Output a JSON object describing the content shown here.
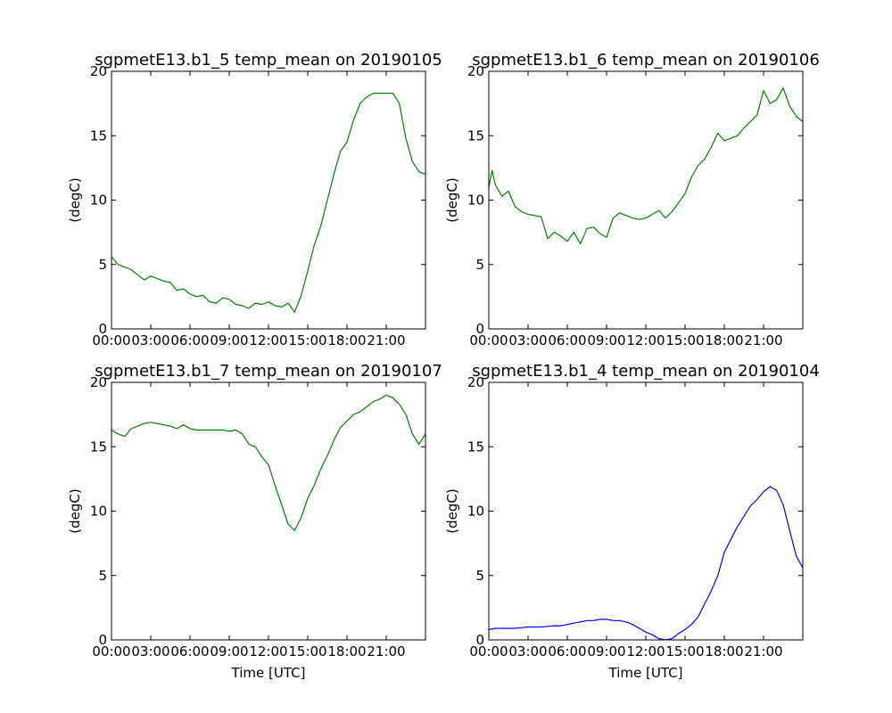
{
  "chart_data": [
    {
      "type": "line",
      "title": "sgpmetE13.b1_5 temp_mean on 20190105",
      "xlabel": "",
      "ylabel": "(degC)",
      "xlim": [
        0,
        24
      ],
      "ylim": [
        0,
        20
      ],
      "x_ticks": [
        0,
        3,
        6,
        9,
        12,
        15,
        18,
        21
      ],
      "x_tick_labels": [
        "00:00",
        "03:00",
        "06:00",
        "09:00",
        "12:00",
        "15:00",
        "18:00",
        "21:00"
      ],
      "y_ticks": [
        0,
        5,
        10,
        15,
        20
      ],
      "y_tick_labels": [
        "0",
        "5",
        "10",
        "15",
        "20"
      ],
      "grid": false,
      "color": "#008000",
      "series": [
        {
          "x": [
            0,
            0.5,
            1,
            1.5,
            2,
            2.5,
            3,
            3.5,
            4,
            4.5,
            5,
            5.5,
            6,
            6.5,
            7,
            7.5,
            8,
            8.5,
            9,
            9.5,
            10,
            10.5,
            11,
            11.5,
            12,
            12.5,
            13,
            13.5,
            14,
            14.5,
            15,
            15.5,
            16,
            16.5,
            17,
            17.5,
            18,
            18.5,
            19,
            19.5,
            20,
            20.5,
            21,
            21.5,
            22,
            22.5,
            23,
            23.5,
            24
          ],
          "y": [
            5.6,
            5.0,
            4.8,
            4.6,
            4.2,
            3.8,
            4.1,
            3.9,
            3.7,
            3.6,
            3.0,
            3.1,
            2.7,
            2.5,
            2.6,
            2.1,
            2.0,
            2.4,
            2.3,
            1.9,
            1.8,
            1.6,
            2.0,
            1.9,
            2.1,
            1.8,
            1.7,
            2.0,
            1.3,
            2.6,
            4.5,
            6.5,
            8.0,
            10.0,
            12.0,
            13.8,
            14.5,
            16.2,
            17.5,
            18.0,
            18.3,
            18.3,
            18.3,
            18.3,
            17.5,
            14.8,
            13.0,
            12.2,
            12.0
          ]
        }
      ]
    },
    {
      "type": "line",
      "title": "sgpmetE13.b1_6 temp_mean on 20190106",
      "xlabel": "",
      "ylabel": "(degC)",
      "xlim": [
        0,
        24
      ],
      "ylim": [
        0,
        20
      ],
      "x_ticks": [
        0,
        3,
        6,
        9,
        12,
        15,
        18,
        21
      ],
      "x_tick_labels": [
        "00:00",
        "03:00",
        "06:00",
        "09:00",
        "12:00",
        "15:00",
        "18:00",
        "21:00"
      ],
      "y_ticks": [
        0,
        5,
        10,
        15,
        20
      ],
      "y_tick_labels": [
        "0",
        "5",
        "10",
        "15",
        "20"
      ],
      "grid": false,
      "color": "#008000",
      "series": [
        {
          "x": [
            0,
            0.25,
            0.5,
            1,
            1.5,
            2,
            2.5,
            3,
            3.5,
            4,
            4.5,
            5,
            5.5,
            6,
            6.5,
            7,
            7.5,
            8,
            8.5,
            9,
            9.5,
            10,
            10.5,
            11,
            11.5,
            12,
            12.5,
            13,
            13.5,
            14,
            14.5,
            15,
            15.5,
            16,
            16.5,
            17,
            17.5,
            18,
            18.5,
            19,
            19.5,
            20,
            20.5,
            21,
            21.5,
            22,
            22.5,
            23,
            23.5,
            24
          ],
          "y": [
            11.0,
            12.3,
            11.2,
            10.3,
            10.7,
            9.5,
            9.1,
            8.9,
            8.8,
            8.7,
            7.0,
            7.5,
            7.2,
            6.8,
            7.5,
            6.6,
            7.8,
            7.9,
            7.4,
            7.1,
            8.6,
            9.0,
            8.8,
            8.6,
            8.5,
            8.6,
            8.9,
            9.2,
            8.6,
            9.1,
            9.8,
            10.5,
            11.8,
            12.7,
            13.2,
            14.1,
            15.2,
            14.6,
            14.8,
            15.0,
            15.6,
            16.1,
            16.6,
            18.5,
            17.5,
            17.8,
            18.7,
            17.3,
            16.5,
            16.1
          ]
        }
      ]
    },
    {
      "type": "line",
      "title": "sgpmetE13.b1_7 temp_mean on 20190107",
      "xlabel": "Time [UTC]",
      "ylabel": "(degC)",
      "xlim": [
        0,
        24
      ],
      "ylim": [
        0,
        20
      ],
      "x_ticks": [
        0,
        3,
        6,
        9,
        12,
        15,
        18,
        21
      ],
      "x_tick_labels": [
        "00:00",
        "03:00",
        "06:00",
        "09:00",
        "12:00",
        "15:00",
        "18:00",
        "21:00"
      ],
      "y_ticks": [
        0,
        5,
        10,
        15,
        20
      ],
      "y_tick_labels": [
        "0",
        "5",
        "10",
        "15",
        "20"
      ],
      "grid": false,
      "color": "#008000",
      "series": [
        {
          "x": [
            0,
            0.5,
            1,
            1.5,
            2,
            2.5,
            3,
            3.5,
            4,
            4.5,
            5,
            5.5,
            6,
            6.5,
            7,
            7.5,
            8,
            8.5,
            9,
            9.5,
            10,
            10.5,
            11,
            11.5,
            12,
            12.5,
            13,
            13.5,
            14,
            14.5,
            15,
            15.5,
            16,
            16.5,
            17,
            17.5,
            18,
            18.5,
            19,
            19.5,
            20,
            20.5,
            21,
            21.5,
            22,
            22.5,
            23,
            23.5,
            24
          ],
          "y": [
            16.3,
            16.0,
            15.8,
            16.4,
            16.6,
            16.8,
            16.9,
            16.8,
            16.7,
            16.6,
            16.4,
            16.7,
            16.4,
            16.3,
            16.3,
            16.3,
            16.3,
            16.3,
            16.2,
            16.3,
            16.0,
            15.2,
            15.0,
            14.2,
            13.6,
            12.0,
            10.5,
            9.0,
            8.5,
            9.5,
            11.0,
            12.0,
            13.3,
            14.3,
            15.5,
            16.5,
            17.0,
            17.5,
            17.7,
            18.1,
            18.5,
            18.7,
            19.0,
            18.8,
            18.3,
            17.5,
            16.0,
            15.2,
            16.0
          ]
        }
      ]
    },
    {
      "type": "line",
      "title": "sgpmetE13.b1_4 temp_mean on 20190104",
      "xlabel": "Time [UTC]",
      "ylabel": "(degC)",
      "xlim": [
        0,
        24
      ],
      "ylim": [
        0,
        20
      ],
      "x_ticks": [
        0,
        3,
        6,
        9,
        12,
        15,
        18,
        21
      ],
      "x_tick_labels": [
        "00:00",
        "03:00",
        "06:00",
        "09:00",
        "12:00",
        "15:00",
        "18:00",
        "21:00"
      ],
      "y_ticks": [
        0,
        5,
        10,
        15,
        20
      ],
      "y_tick_labels": [
        "0",
        "5",
        "10",
        "15",
        "20"
      ],
      "grid": false,
      "color": "#0000ff",
      "series": [
        {
          "x": [
            0,
            0.5,
            1,
            1.5,
            2,
            2.5,
            3,
            3.5,
            4,
            4.5,
            5,
            5.5,
            6,
            6.5,
            7,
            7.5,
            8,
            8.5,
            9,
            9.5,
            10,
            10.5,
            11,
            11.5,
            12,
            12.5,
            13,
            13.5,
            14,
            14.5,
            15,
            15.5,
            16,
            16.5,
            17,
            17.5,
            18,
            18.5,
            19,
            19.5,
            20,
            20.5,
            21,
            21.5,
            22,
            22.5,
            23,
            23.5,
            24
          ],
          "y": [
            0.8,
            0.9,
            0.9,
            0.9,
            0.9,
            0.95,
            1.0,
            1.0,
            1.0,
            1.05,
            1.1,
            1.1,
            1.2,
            1.3,
            1.4,
            1.5,
            1.5,
            1.6,
            1.6,
            1.5,
            1.5,
            1.4,
            1.2,
            0.9,
            0.6,
            0.4,
            0.1,
            0.0,
            0.1,
            0.5,
            0.8,
            1.2,
            1.8,
            2.8,
            3.8,
            5.0,
            6.8,
            7.8,
            8.8,
            9.6,
            10.4,
            10.9,
            11.5,
            11.9,
            11.6,
            10.5,
            8.5,
            6.5,
            5.6
          ]
        }
      ]
    }
  ]
}
